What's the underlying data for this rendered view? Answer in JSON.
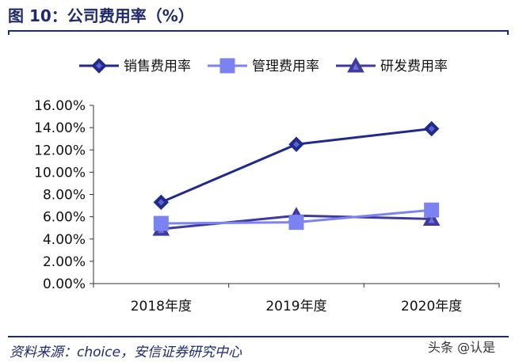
{
  "header": {
    "title": "图 10：公司费用率（%）"
  },
  "footer": {
    "source": "资料来源：choice，安信证券研究中心",
    "watermark": "头条 @认是"
  },
  "chart_data": {
    "type": "line",
    "title": "",
    "xlabel": "",
    "ylabel": "",
    "categories": [
      "2018年度",
      "2019年度",
      "2020年度"
    ],
    "y_ticks": [
      "0.00%",
      "2.00%",
      "4.00%",
      "6.00%",
      "8.00%",
      "10.00%",
      "12.00%",
      "14.00%",
      "16.00%"
    ],
    "ylim": [
      0,
      16
    ],
    "grid": false,
    "legend_position": "top",
    "series": [
      {
        "name": "销售费用率",
        "values": [
          7.3,
          12.5,
          13.9
        ],
        "color": "#1f2a8a",
        "marker": "diamond"
      },
      {
        "name": "管理费用率",
        "values": [
          5.4,
          5.5,
          6.6
        ],
        "color": "#7b83f0",
        "marker": "square"
      },
      {
        "name": "研发费用率",
        "values": [
          4.9,
          6.1,
          5.8
        ],
        "color": "#3f3a9e",
        "marker": "triangle"
      }
    ]
  }
}
